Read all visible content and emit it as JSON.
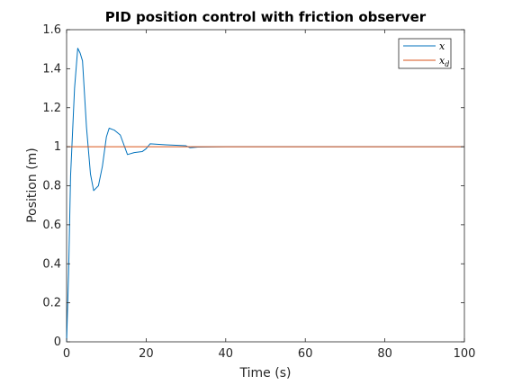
{
  "chart_data": {
    "type": "line",
    "title": "PID position control with friction observer",
    "xlabel": "Time (s)",
    "ylabel": "Position (m)",
    "xlim": [
      0,
      100
    ],
    "ylim": [
      0,
      1.6
    ],
    "xticks": [
      0,
      20,
      40,
      60,
      80,
      100
    ],
    "yticks": [
      0,
      0.2,
      0.4,
      0.6,
      0.8,
      1,
      1.2,
      1.4,
      1.6
    ],
    "grid": false,
    "legend_position": "top-right",
    "series": [
      {
        "name": "x",
        "color": "#0072BD",
        "x": [
          0,
          0.5,
          1,
          2,
          2.8,
          3.4,
          4,
          5,
          6,
          6.8,
          8,
          9,
          10,
          10.7,
          12,
          13.5,
          15.3,
          17,
          19,
          20,
          21,
          25,
          30,
          31,
          33,
          40,
          50,
          60,
          70,
          80,
          90,
          100
        ],
        "y": [
          0,
          0.35,
          0.85,
          1.3,
          1.505,
          1.48,
          1.44,
          1.1,
          0.86,
          0.775,
          0.8,
          0.9,
          1.05,
          1.095,
          1.085,
          1.06,
          0.96,
          0.97,
          0.975,
          0.99,
          1.015,
          1.01,
          1.005,
          0.995,
          0.998,
          1.0,
          1.0,
          1.0,
          1.0,
          1.0,
          1.0,
          1.0
        ]
      },
      {
        "name": "x_d",
        "color": "#D95319",
        "x": [
          0,
          100
        ],
        "y": [
          1,
          1
        ]
      }
    ]
  }
}
